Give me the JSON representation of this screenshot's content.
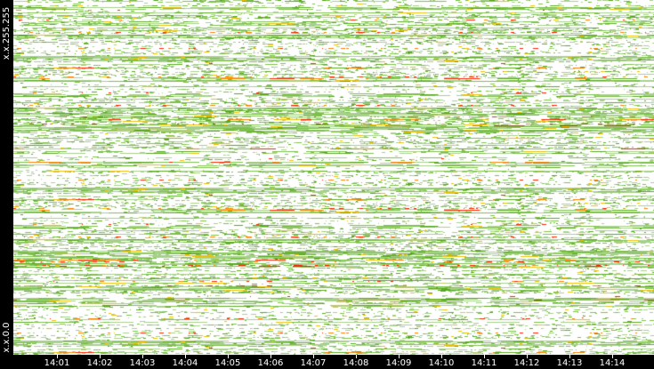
{
  "chart_data": {
    "type": "heatmap",
    "title": "",
    "xlabel": "",
    "ylabel": "",
    "x_ticks": [
      "14:01",
      "14:02",
      "14:03",
      "14:04",
      "14:05",
      "14:06",
      "14:07",
      "14:08",
      "14:09",
      "14:10",
      "14:11",
      "14:12",
      "14:13",
      "14:14"
    ],
    "y_labels": {
      "top": "x.x.255.255",
      "bottom": "x.x.0.0"
    },
    "color_scale": [
      "#ffffff",
      "#a8d08d",
      "#7cc04a",
      "#5aa820",
      "#f0c000",
      "#ff8000",
      "#ff2000"
    ],
    "background": "#ffffff",
    "grid": false
  }
}
